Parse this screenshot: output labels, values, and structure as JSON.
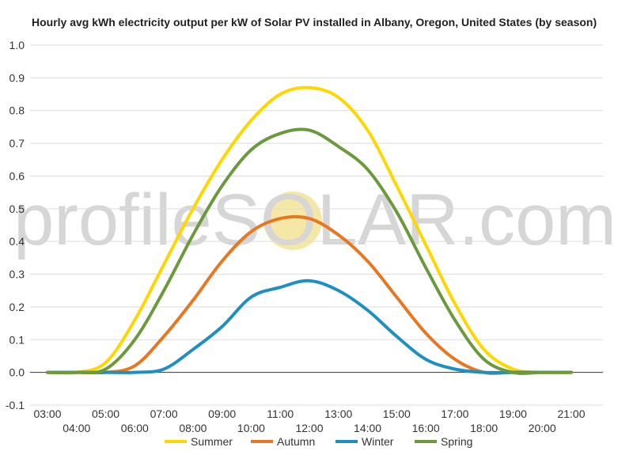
{
  "chart_data": {
    "type": "line",
    "title": "Hourly avg kWh electricity output per kW of Solar PV installed in Albany, Oregon, United States (by season)",
    "xlabel": "",
    "ylabel": "",
    "ylim": [
      -0.1,
      1.0
    ],
    "y_ticks": [
      "1.0",
      "0.9",
      "0.8",
      "0.7",
      "0.6",
      "0.5",
      "0.4",
      "0.3",
      "0.2",
      "0.1",
      "0.0",
      "-0.1"
    ],
    "x": [
      "03:00",
      "04:00",
      "05:00",
      "06:00",
      "07:00",
      "08:00",
      "09:00",
      "10:00",
      "11:00",
      "12:00",
      "13:00",
      "14:00",
      "15:00",
      "16:00",
      "17:00",
      "18:00",
      "19:00",
      "20:00",
      "21:00"
    ],
    "grid": true,
    "legend_position": "bottom",
    "series": [
      {
        "name": "Summer",
        "color": "#FFD700",
        "values": [
          0.0,
          0.0,
          0.03,
          0.16,
          0.33,
          0.5,
          0.65,
          0.77,
          0.85,
          0.87,
          0.84,
          0.74,
          0.57,
          0.39,
          0.21,
          0.07,
          0.01,
          0.0,
          0.0
        ]
      },
      {
        "name": "Autumn",
        "color": "#E87722",
        "values": [
          0.0,
          0.0,
          0.0,
          0.02,
          0.11,
          0.22,
          0.34,
          0.43,
          0.47,
          0.47,
          0.42,
          0.34,
          0.23,
          0.12,
          0.04,
          0.0,
          0.0,
          0.0,
          0.0
        ]
      },
      {
        "name": "Winter",
        "color": "#1F8FC1",
        "values": [
          0.0,
          0.0,
          0.0,
          0.0,
          0.01,
          0.07,
          0.14,
          0.23,
          0.26,
          0.28,
          0.25,
          0.19,
          0.11,
          0.04,
          0.01,
          0.0,
          0.0,
          0.0,
          0.0
        ]
      },
      {
        "name": "Spring",
        "color": "#6A9A3C",
        "values": [
          0.0,
          0.0,
          0.01,
          0.1,
          0.25,
          0.42,
          0.57,
          0.68,
          0.73,
          0.74,
          0.69,
          0.62,
          0.49,
          0.32,
          0.16,
          0.04,
          0.0,
          0.0,
          0.0
        ]
      }
    ]
  },
  "watermark": {
    "text": "profileSOLAR.com",
    "sun_color": "#F5E7A6"
  }
}
